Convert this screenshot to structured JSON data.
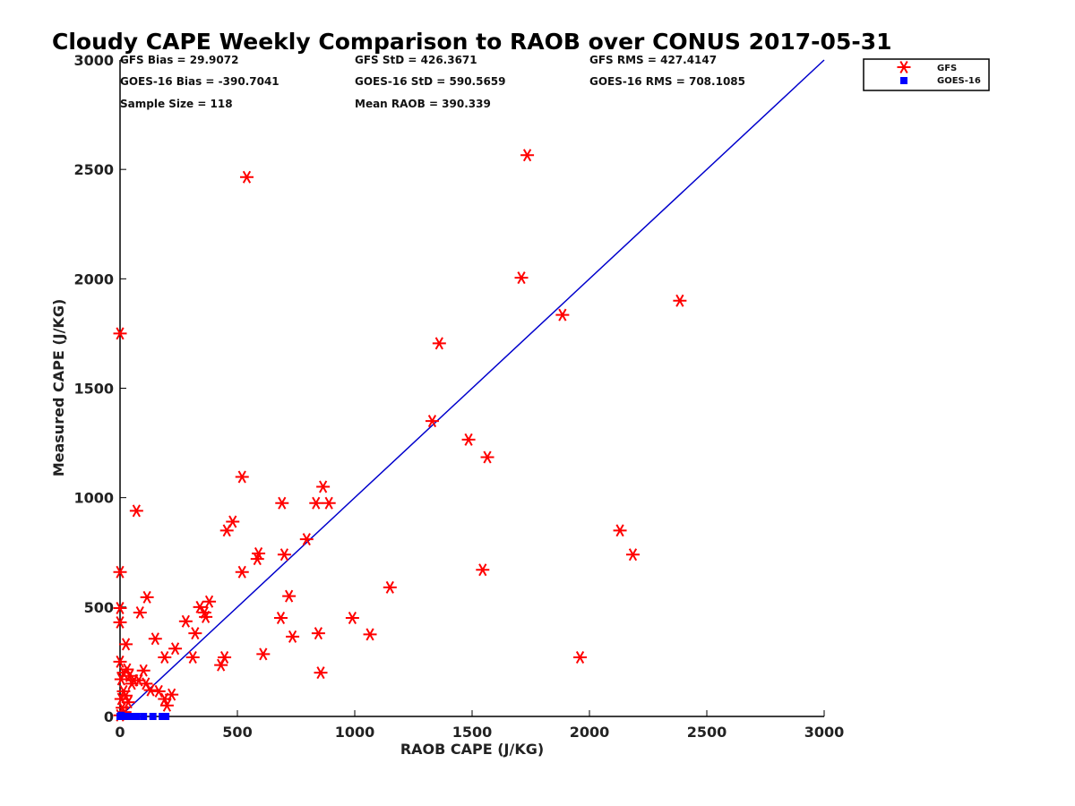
{
  "chart_data": {
    "type": "scatter",
    "title": "Cloudy CAPE Weekly Comparison to RAOB over CONUS 2017-05-31",
    "xlabel": "RAOB CAPE (J/KG)",
    "ylabel": "Measured CAPE (J/KG)",
    "xlim": [
      0,
      3000
    ],
    "ylim": [
      0,
      3000
    ],
    "xticks": [
      "0",
      "500",
      "1000",
      "1500",
      "2000",
      "2500",
      "3000"
    ],
    "yticks": [
      "0",
      "500",
      "1000",
      "1500",
      "2000",
      "2500",
      "3000"
    ],
    "grid": false,
    "legend_position": "top-right",
    "stats": [
      "GFS Bias = 29.9072",
      "GFS StD = 426.3671",
      "GFS RMS = 427.4147",
      "GOES-16 Bias = -390.7041",
      "GOES-16 StD = 590.5659",
      "GOES-16 RMS = 708.1085",
      "Sample Size = 118",
      "Mean RAOB = 390.339"
    ],
    "reference_line": {
      "x": [
        0,
        3000
      ],
      "y": [
        0,
        3000
      ],
      "color": "#0000cc"
    },
    "series": [
      {
        "name": "GFS",
        "marker": "asterisk",
        "color": "#ff0000",
        "points": [
          [
            540,
            2465
          ],
          [
            1735,
            2565
          ],
          [
            1710,
            2005
          ],
          [
            1885,
            1835
          ],
          [
            2385,
            1900
          ],
          [
            0,
            1750
          ],
          [
            1360,
            1705
          ],
          [
            1330,
            1350
          ],
          [
            1485,
            1265
          ],
          [
            1565,
            1185
          ],
          [
            520,
            1095
          ],
          [
            865,
            1050
          ],
          [
            70,
            940
          ],
          [
            690,
            975
          ],
          [
            835,
            975
          ],
          [
            890,
            975
          ],
          [
            480,
            890
          ],
          [
            455,
            850
          ],
          [
            795,
            810
          ],
          [
            2130,
            850
          ],
          [
            590,
            745
          ],
          [
            700,
            740
          ],
          [
            585,
            720
          ],
          [
            2185,
            740
          ],
          [
            0,
            660
          ],
          [
            520,
            660
          ],
          [
            1545,
            670
          ],
          [
            115,
            545
          ],
          [
            720,
            550
          ],
          [
            380,
            525
          ],
          [
            340,
            500
          ],
          [
            360,
            475
          ],
          [
            0,
            495
          ],
          [
            85,
            475
          ],
          [
            365,
            455
          ],
          [
            280,
            435
          ],
          [
            685,
            450
          ],
          [
            0,
            430
          ],
          [
            990,
            450
          ],
          [
            1150,
            590
          ],
          [
            320,
            380
          ],
          [
            845,
            380
          ],
          [
            735,
            365
          ],
          [
            150,
            355
          ],
          [
            1065,
            375
          ],
          [
            25,
            330
          ],
          [
            235,
            310
          ],
          [
            445,
            270
          ],
          [
            610,
            285
          ],
          [
            310,
            270
          ],
          [
            190,
            270
          ],
          [
            1960,
            270
          ],
          [
            0,
            250
          ],
          [
            430,
            235
          ],
          [
            30,
            215
          ],
          [
            100,
            210
          ],
          [
            855,
            200
          ],
          [
            15,
            200
          ],
          [
            40,
            185
          ],
          [
            60,
            165
          ],
          [
            80,
            165
          ],
          [
            5,
            170
          ],
          [
            50,
            150
          ],
          [
            110,
            150
          ],
          [
            130,
            120
          ],
          [
            165,
            115
          ],
          [
            220,
            100
          ],
          [
            15,
            115
          ],
          [
            25,
            95
          ],
          [
            5,
            80
          ],
          [
            190,
            80
          ],
          [
            35,
            65
          ],
          [
            200,
            50
          ],
          [
            10,
            40
          ],
          [
            20,
            20
          ],
          [
            0,
            5
          ]
        ]
      },
      {
        "name": "GOES-16",
        "marker": "square",
        "color": "#0000ff",
        "points": [
          [
            0,
            0
          ],
          [
            10,
            0
          ],
          [
            20,
            0
          ],
          [
            30,
            0
          ],
          [
            40,
            0
          ],
          [
            50,
            0
          ],
          [
            60,
            0
          ],
          [
            70,
            0
          ],
          [
            100,
            0
          ],
          [
            140,
            0
          ],
          [
            180,
            0
          ],
          [
            195,
            0
          ],
          [
            5,
            5
          ]
        ]
      }
    ]
  }
}
